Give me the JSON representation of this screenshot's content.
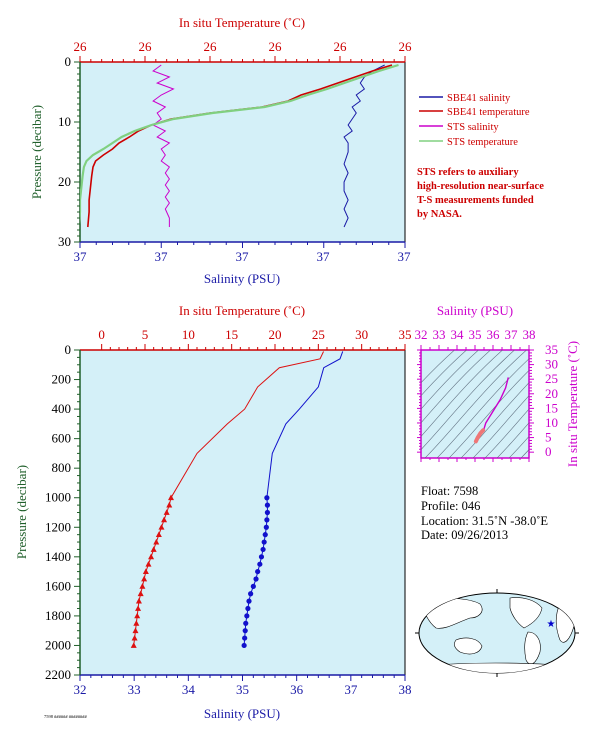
{
  "colors": {
    "plot_bg": "#d4f0f8",
    "salinity_line": "#1a1aa6",
    "temperature_line": "#cc0000",
    "sts_salinity": "#cc00cc",
    "sts_temperature": "#80d080",
    "profile_temperature": "#dd1111",
    "profile_salinity": "#1111cc",
    "temp_axis": "#cc0000",
    "sal_axis": "#1a1aa6",
    "pressure_axis": "#1f5f2a",
    "ts_axis": "#cc00cc"
  },
  "chart_data": [
    {
      "type": "line",
      "name": "near-surface",
      "top_axis": {
        "label": "In situ Temperature (˚C)",
        "tick_labels": [
          "26",
          "26",
          "26",
          "26",
          "26",
          "26"
        ]
      },
      "bottom_axis": {
        "label": "Salinity (PSU)",
        "tick_labels": [
          "37",
          "37",
          "37",
          "37",
          "37"
        ]
      },
      "left_axis": {
        "label": "Pressure (decibar)",
        "ticks": [
          0,
          10,
          20,
          30
        ],
        "range": [
          0,
          30
        ],
        "inverted": true
      },
      "temp_range": [
        25.0,
        27.5
      ],
      "sal_range": [
        36.6,
        37.4
      ],
      "legend": [
        "SBE41 salinity",
        "SBE41 temperature",
        "STS salinity",
        "STS temperature"
      ],
      "note": [
        "STS refers to auxiliary",
        "high-resolution near-surface",
        "T-S measurements funded",
        "by NASA."
      ],
      "series": [
        {
          "name": "SBE41 salinity",
          "color": "#1a1aa6",
          "x": [
            37.35,
            37.32,
            37.3,
            37.29,
            37.3,
            37.28,
            37.29,
            37.27,
            37.28,
            37.27,
            37.26,
            37.27,
            37.25,
            37.26,
            37.26,
            37.25,
            37.26,
            37.25,
            37.25,
            37.26,
            37.25,
            37.26,
            37.25
          ],
          "y": [
            0.5,
            1.5,
            2.5,
            3.5,
            4.5,
            5.5,
            6.5,
            7.5,
            8.5,
            9.5,
            10.5,
            11.5,
            12.5,
            13.5,
            15,
            17,
            18.5,
            20,
            21.5,
            23,
            24.5,
            26,
            27.5
          ]
        },
        {
          "name": "SBE41 temperature",
          "color": "#cc0000",
          "x": [
            27.4,
            27.25,
            27.05,
            26.85,
            26.7,
            26.6,
            26.4,
            26.0,
            25.7,
            25.55,
            25.45,
            25.38,
            25.3,
            25.25,
            25.18,
            25.12,
            25.1,
            25.09,
            25.08,
            25.07,
            25.07,
            25.06
          ],
          "y": [
            0.5,
            1.5,
            3.0,
            4.5,
            5.5,
            6.5,
            7.5,
            8.5,
            9.5,
            10.5,
            11.5,
            12.5,
            13.5,
            14.5,
            15.5,
            16.5,
            17.5,
            19.0,
            21.0,
            23.0,
            25.0,
            27.5
          ]
        },
        {
          "name": "STS salinity",
          "color": "#cc00cc",
          "x": [
            36.8,
            36.78,
            36.82,
            36.79,
            36.83,
            36.8,
            36.78,
            36.81,
            36.79,
            36.8,
            36.78,
            36.81,
            36.79,
            36.82,
            36.8,
            36.81,
            36.8,
            36.82,
            36.81,
            36.82,
            36.81,
            36.82,
            36.81,
            36.82,
            36.81,
            36.82,
            36.82
          ],
          "y": [
            0.5,
            1.5,
            2.5,
            3.5,
            4.5,
            5.5,
            6.5,
            7.5,
            8.5,
            9.5,
            10.5,
            11.5,
            12.5,
            13.5,
            14.5,
            15.5,
            16.5,
            17.5,
            18.5,
            19.5,
            20.5,
            21.5,
            22.5,
            23.5,
            24.5,
            26.0,
            27.5
          ]
        },
        {
          "name": "STS temperature",
          "color": "#80d080",
          "x": [
            27.45,
            27.3,
            27.1,
            26.9,
            26.75,
            26.62,
            26.42,
            26.02,
            25.72,
            25.55,
            25.42,
            25.32,
            25.25,
            25.18,
            25.1,
            25.05,
            25.03,
            25.02,
            25.01,
            25.0,
            25.0,
            24.99
          ],
          "y": [
            0.5,
            1.5,
            3.0,
            4.5,
            5.5,
            6.5,
            7.5,
            8.5,
            9.5,
            10.5,
            11.5,
            12.5,
            13.5,
            14.5,
            15.5,
            16.5,
            17.5,
            19.0,
            21.0,
            23.0,
            25.0,
            27.5
          ]
        }
      ]
    },
    {
      "type": "line",
      "name": "full-profile",
      "top_axis": {
        "label": "In situ Temperature (˚C)",
        "ticks": [
          0,
          5,
          10,
          15,
          20,
          25,
          30,
          35
        ],
        "range": [
          -2.5,
          35
        ]
      },
      "bottom_axis": {
        "label": "Salinity (PSU)",
        "ticks": [
          32,
          33,
          34,
          35,
          36,
          37,
          38
        ],
        "range": [
          32,
          38
        ]
      },
      "left_axis": {
        "label": "Pressure (decibar)",
        "ticks": [
          0,
          200,
          400,
          600,
          800,
          1000,
          1200,
          1400,
          1600,
          1800,
          2000,
          2200
        ],
        "range": [
          0,
          2200
        ],
        "inverted": true
      },
      "series": [
        {
          "name": "temperature",
          "color": "#dd1111",
          "marker": "triangle",
          "marker_from_index": 7,
          "x": [
            25.6,
            25.2,
            20.5,
            18.0,
            16.5,
            14.5,
            11.0,
            8.0,
            7.8,
            7.5,
            7.2,
            6.9,
            6.6,
            6.3,
            6.0,
            5.7,
            5.4,
            5.1,
            4.9,
            4.7,
            4.5,
            4.3,
            4.2,
            4.1,
            4.0,
            3.9,
            3.8,
            3.7
          ],
          "y": [
            10,
            60,
            120,
            250,
            400,
            500,
            700,
            1000,
            1050,
            1100,
            1150,
            1200,
            1250,
            1300,
            1350,
            1400,
            1450,
            1500,
            1550,
            1600,
            1650,
            1700,
            1750,
            1800,
            1850,
            1900,
            1950,
            2000
          ]
        },
        {
          "name": "salinity",
          "color": "#1111cc",
          "marker": "circle",
          "marker_from_index": 7,
          "x": [
            36.85,
            36.8,
            36.5,
            36.4,
            36.05,
            35.8,
            35.55,
            35.45,
            35.46,
            35.46,
            35.45,
            35.44,
            35.42,
            35.4,
            35.38,
            35.35,
            35.32,
            35.28,
            35.25,
            35.2,
            35.15,
            35.12,
            35.1,
            35.08,
            35.06,
            35.05,
            35.04,
            35.03
          ],
          "y": [
            10,
            60,
            120,
            250,
            400,
            500,
            700,
            1000,
            1050,
            1100,
            1150,
            1200,
            1250,
            1300,
            1350,
            1400,
            1450,
            1500,
            1550,
            1600,
            1650,
            1700,
            1750,
            1800,
            1850,
            1900,
            1950,
            2000
          ]
        }
      ]
    },
    {
      "type": "line",
      "name": "ts-diagram",
      "top_axis": {
        "label": "Salinity (PSU)",
        "ticks": [
          32,
          33,
          34,
          35,
          36,
          37,
          38
        ],
        "range": [
          32,
          38
        ]
      },
      "right_axis": {
        "label": "In situ Temperature (˚C)",
        "ticks": [
          0,
          5,
          10,
          15,
          20,
          25,
          30,
          35
        ],
        "range": [
          -2,
          35
        ]
      },
      "series": [
        {
          "name": "profile",
          "color": "#cc00cc",
          "x": [
            36.85,
            36.7,
            36.4,
            36.1,
            35.8,
            35.6,
            35.5,
            35.45,
            35.3,
            35.15,
            35.05
          ],
          "y": [
            25.6,
            22,
            18,
            15,
            12,
            10,
            8,
            7.5,
            6.5,
            5,
            3.7
          ]
        }
      ]
    }
  ],
  "float_info": {
    "float": "Float:  7598",
    "profile": "Profile:  046",
    "location": "Location:  31.5˚N  -38.0˚E",
    "date": "Date:  09/26/2013"
  },
  "footer": "7598 ###### ########"
}
